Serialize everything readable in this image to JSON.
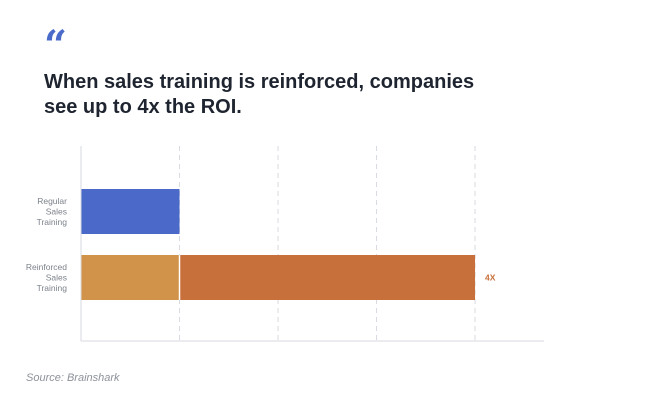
{
  "quote_icon": "quote-mark-icon",
  "quote_glyph": "“",
  "headline": "When sales training is reinforced, companies see up to 4x the ROI.",
  "source": "Source: Brainshark",
  "colors": {
    "regular": "#4a69c8",
    "reinforced_base": "#d1924a",
    "reinforced_gain": "#c8703c",
    "multiplier_label": "#c8703c",
    "quote": "#4a6bc9"
  },
  "chart_data": {
    "type": "bar",
    "orientation": "horizontal",
    "stacked": true,
    "title": "",
    "xlabel": "",
    "ylabel": "",
    "categories": [
      "Regular Sales Training",
      "Reinforced Sales Training"
    ],
    "category_lines": [
      [
        "Regular",
        "Sales",
        "Training"
      ],
      [
        "Reinforced",
        "Sales",
        "Training"
      ]
    ],
    "series": [
      {
        "values": [
          1,
          1
        ]
      },
      {
        "values": [
          0,
          3
        ]
      }
    ],
    "xlim": [
      0,
      4.7
    ],
    "gridlines": [
      1,
      2,
      3,
      4
    ],
    "grid": true,
    "annotations": [
      {
        "category_index": 1,
        "text": "4X"
      }
    ]
  }
}
